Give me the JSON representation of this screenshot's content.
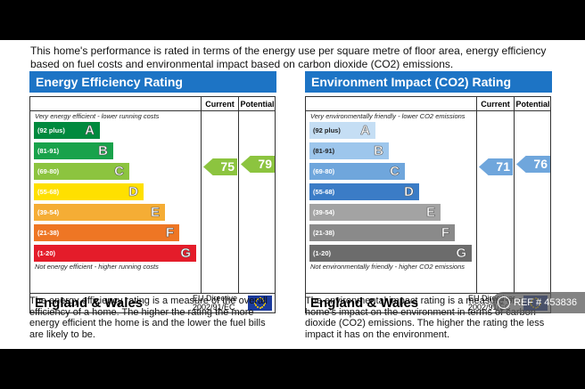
{
  "intro": "This home's performance is rated in terms of the energy use per square metre of floor area, energy efficiency based on fuel costs and environmental impact based on carbon dioxide (CO2) emissions.",
  "columns": {
    "current": "Current",
    "potential": "Potential"
  },
  "energy": {
    "title": "Energy Efficiency Rating",
    "top_note": "Very energy efficient - lower running costs",
    "bottom_note": "Not energy efficient - higher running costs",
    "current": 75,
    "potential": 79,
    "bands": [
      {
        "range": "(92 plus)",
        "letter": "A",
        "color": "#008a3e"
      },
      {
        "range": "(81-91)",
        "letter": "B",
        "color": "#19a24b"
      },
      {
        "range": "(69-80)",
        "letter": "C",
        "color": "#8cc43f"
      },
      {
        "range": "(55-68)",
        "letter": "D",
        "color": "#ffe000"
      },
      {
        "range": "(39-54)",
        "letter": "E",
        "color": "#f5ad35"
      },
      {
        "range": "(21-38)",
        "letter": "F",
        "color": "#ee7624"
      },
      {
        "range": "(1-20)",
        "letter": "G",
        "color": "#e41c2a"
      }
    ],
    "current_color": "#8cc43f",
    "potential_color": "#8cc43f",
    "description": "The energy efficiency rating is a measure of the overall efficiency of a home. The higher the rating the more energy efficient the home is and the lower the fuel bills are likely to be."
  },
  "environment": {
    "title": "Environment Impact (CO2) Rating",
    "top_note": "Very environmentally friendly - lower CO2 emissions",
    "bottom_note": "Not environmentally friendly - higher CO2 emissions",
    "current": 71,
    "potential": 76,
    "bands": [
      {
        "range": "(92 plus)",
        "letter": "A",
        "color": "#c5def4"
      },
      {
        "range": "(81-91)",
        "letter": "B",
        "color": "#9dc6ec"
      },
      {
        "range": "(69-80)",
        "letter": "C",
        "color": "#6fa6dc"
      },
      {
        "range": "(55-68)",
        "letter": "D",
        "color": "#3b7cc6"
      },
      {
        "range": "(39-54)",
        "letter": "E",
        "color": "#a3a3a3"
      },
      {
        "range": "(21-38)",
        "letter": "F",
        "color": "#8a8a8a"
      },
      {
        "range": "(1-20)",
        "letter": "G",
        "color": "#6c6c6c"
      }
    ],
    "current_color": "#6fa6dc",
    "potential_color": "#6fa6dc",
    "description": "The environmental impact rating is a measure of a home's impact on the environment in terms of carbon dioxide (CO2) emissions. The higher the rating the less impact it has on the environment."
  },
  "footer": {
    "region": "England & Wales",
    "directive_line1": "EU Directive",
    "directive_line2": "2002/91/EC"
  },
  "watermark": "REF # 453836"
}
